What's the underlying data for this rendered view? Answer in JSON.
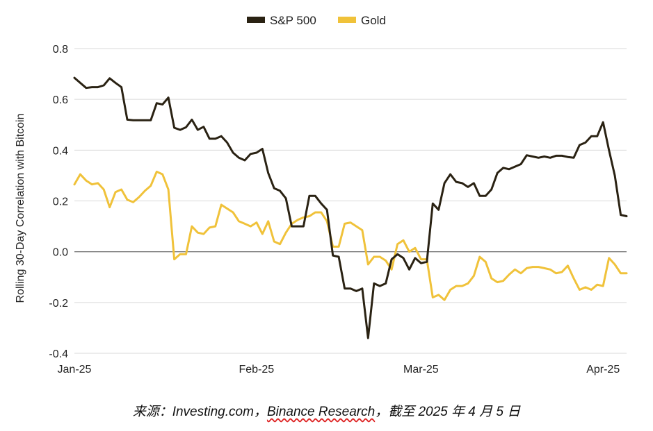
{
  "chart_data": {
    "type": "line",
    "title": "",
    "xlabel": "",
    "ylabel": "Rolling 30-Day Correlation with Bitcoin",
    "ylim": [
      -0.4,
      0.8
    ],
    "yticks": [
      "0.8",
      "0.6",
      "0.4",
      "0.2",
      "0.0",
      "-0.2",
      "-0.4"
    ],
    "ytick_values": [
      0.8,
      0.6,
      0.4,
      0.2,
      0.0,
      -0.2,
      -0.4
    ],
    "xticks": [
      {
        "label": "Jan-25",
        "day": 0
      },
      {
        "label": "Feb-25",
        "day": 31
      },
      {
        "label": "Mar-25",
        "day": 59
      },
      {
        "label": "Apr-25",
        "day": 90
      }
    ],
    "xlim": [
      0,
      94
    ],
    "legend_position": "top-center",
    "grid": "horizontal",
    "series": [
      {
        "name": "S&P 500",
        "color": "#2a2213",
        "points": [
          [
            0,
            0.685
          ],
          [
            1,
            0.665
          ],
          [
            2,
            0.645
          ],
          [
            3,
            0.648
          ],
          [
            4,
            0.648
          ],
          [
            5,
            0.655
          ],
          [
            6,
            0.683
          ],
          [
            7,
            0.665
          ],
          [
            8,
            0.648
          ],
          [
            9,
            0.52
          ],
          [
            10,
            0.518
          ],
          [
            11,
            0.518
          ],
          [
            12,
            0.518
          ],
          [
            13,
            0.518
          ],
          [
            14,
            0.585
          ],
          [
            15,
            0.58
          ],
          [
            16,
            0.607
          ],
          [
            17,
            0.488
          ],
          [
            18,
            0.48
          ],
          [
            19,
            0.49
          ],
          [
            20,
            0.52
          ],
          [
            21,
            0.48
          ],
          [
            22,
            0.492
          ],
          [
            23,
            0.445
          ],
          [
            24,
            0.445
          ],
          [
            25,
            0.455
          ],
          [
            26,
            0.43
          ],
          [
            27,
            0.39
          ],
          [
            28,
            0.37
          ],
          [
            29,
            0.36
          ],
          [
            30,
            0.385
          ],
          [
            31,
            0.39
          ],
          [
            32,
            0.405
          ],
          [
            33,
            0.31
          ],
          [
            34,
            0.25
          ],
          [
            35,
            0.24
          ],
          [
            36,
            0.21
          ],
          [
            37,
            0.1
          ],
          [
            38,
            0.1
          ],
          [
            39,
            0.1
          ],
          [
            40,
            0.22
          ],
          [
            41,
            0.22
          ],
          [
            42,
            0.19
          ],
          [
            43,
            0.165
          ],
          [
            44,
            -0.015
          ],
          [
            45,
            -0.02
          ],
          [
            46,
            -0.145
          ],
          [
            47,
            -0.145
          ],
          [
            48,
            -0.155
          ],
          [
            49,
            -0.145
          ],
          [
            50,
            -0.34
          ],
          [
            51,
            -0.125
          ],
          [
            52,
            -0.135
          ],
          [
            53,
            -0.125
          ],
          [
            54,
            -0.03
          ],
          [
            55,
            -0.01
          ],
          [
            56,
            -0.025
          ],
          [
            57,
            -0.07
          ],
          [
            58,
            -0.025
          ],
          [
            59,
            -0.045
          ],
          [
            60,
            -0.04
          ],
          [
            61,
            0.19
          ],
          [
            62,
            0.165
          ],
          [
            63,
            0.27
          ],
          [
            64,
            0.305
          ],
          [
            65,
            0.275
          ],
          [
            66,
            0.27
          ],
          [
            67,
            0.255
          ],
          [
            68,
            0.27
          ],
          [
            69,
            0.22
          ],
          [
            70,
            0.22
          ],
          [
            71,
            0.245
          ],
          [
            72,
            0.31
          ],
          [
            73,
            0.33
          ],
          [
            74,
            0.325
          ],
          [
            75,
            0.335
          ],
          [
            76,
            0.345
          ],
          [
            77,
            0.38
          ],
          [
            78,
            0.375
          ],
          [
            79,
            0.37
          ],
          [
            80,
            0.375
          ],
          [
            81,
            0.37
          ],
          [
            82,
            0.378
          ],
          [
            83,
            0.378
          ],
          [
            84,
            0.373
          ],
          [
            85,
            0.37
          ],
          [
            86,
            0.42
          ],
          [
            87,
            0.43
          ],
          [
            88,
            0.455
          ],
          [
            89,
            0.455
          ],
          [
            90,
            0.51
          ],
          [
            91,
            0.4
          ],
          [
            92,
            0.3
          ],
          [
            93,
            0.145
          ],
          [
            94,
            0.14
          ]
        ]
      },
      {
        "name": "Gold",
        "color": "#f0c23a",
        "points": [
          [
            0,
            0.265
          ],
          [
            1,
            0.305
          ],
          [
            2,
            0.28
          ],
          [
            3,
            0.265
          ],
          [
            4,
            0.27
          ],
          [
            5,
            0.245
          ],
          [
            6,
            0.175
          ],
          [
            7,
            0.235
          ],
          [
            8,
            0.245
          ],
          [
            9,
            0.205
          ],
          [
            10,
            0.195
          ],
          [
            11,
            0.215
          ],
          [
            12,
            0.24
          ],
          [
            13,
            0.26
          ],
          [
            14,
            0.315
          ],
          [
            15,
            0.305
          ],
          [
            16,
            0.245
          ],
          [
            17,
            -0.03
          ],
          [
            18,
            -0.01
          ],
          [
            19,
            -0.01
          ],
          [
            20,
            0.1
          ],
          [
            21,
            0.075
          ],
          [
            22,
            0.07
          ],
          [
            23,
            0.095
          ],
          [
            24,
            0.1
          ],
          [
            25,
            0.185
          ],
          [
            26,
            0.17
          ],
          [
            27,
            0.155
          ],
          [
            28,
            0.12
          ],
          [
            29,
            0.11
          ],
          [
            30,
            0.1
          ],
          [
            31,
            0.115
          ],
          [
            32,
            0.07
          ],
          [
            33,
            0.12
          ],
          [
            34,
            0.04
          ],
          [
            35,
            0.03
          ],
          [
            36,
            0.075
          ],
          [
            37,
            0.11
          ],
          [
            38,
            0.125
          ],
          [
            39,
            0.135
          ],
          [
            40,
            0.14
          ],
          [
            41,
            0.155
          ],
          [
            42,
            0.155
          ],
          [
            43,
            0.12
          ],
          [
            44,
            0.02
          ],
          [
            45,
            0.02
          ],
          [
            46,
            0.11
          ],
          [
            47,
            0.115
          ],
          [
            48,
            0.1
          ],
          [
            49,
            0.085
          ],
          [
            50,
            -0.05
          ],
          [
            51,
            -0.02
          ],
          [
            52,
            -0.02
          ],
          [
            53,
            -0.035
          ],
          [
            54,
            -0.07
          ],
          [
            55,
            0.03
          ],
          [
            56,
            0.045
          ],
          [
            57,
            0.0
          ],
          [
            58,
            0.015
          ],
          [
            59,
            -0.03
          ],
          [
            60,
            -0.03
          ],
          [
            61,
            -0.18
          ],
          [
            62,
            -0.17
          ],
          [
            63,
            -0.19
          ],
          [
            64,
            -0.15
          ],
          [
            65,
            -0.135
          ],
          [
            66,
            -0.135
          ],
          [
            67,
            -0.125
          ],
          [
            68,
            -0.095
          ],
          [
            69,
            -0.02
          ],
          [
            70,
            -0.04
          ],
          [
            71,
            -0.105
          ],
          [
            72,
            -0.12
          ],
          [
            73,
            -0.115
          ],
          [
            74,
            -0.09
          ],
          [
            75,
            -0.07
          ],
          [
            76,
            -0.085
          ],
          [
            77,
            -0.065
          ],
          [
            78,
            -0.06
          ],
          [
            79,
            -0.06
          ],
          [
            80,
            -0.065
          ],
          [
            81,
            -0.07
          ],
          [
            82,
            -0.085
          ],
          [
            83,
            -0.08
          ],
          [
            84,
            -0.055
          ],
          [
            85,
            -0.105
          ],
          [
            86,
            -0.15
          ],
          [
            87,
            -0.14
          ],
          [
            88,
            -0.15
          ],
          [
            89,
            -0.13
          ],
          [
            90,
            -0.135
          ],
          [
            91,
            -0.025
          ],
          [
            92,
            -0.05
          ],
          [
            93,
            -0.085
          ],
          [
            94,
            -0.085
          ]
        ]
      }
    ]
  },
  "source": {
    "prefix": "来源：Investing.com，",
    "underlined": "Binance Research",
    "suffix": "，截至 2025 年 4 月 5 日"
  }
}
